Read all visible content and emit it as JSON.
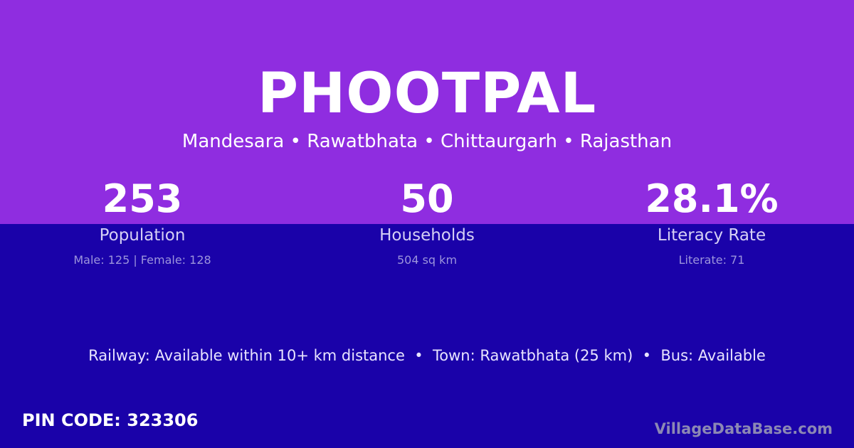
{
  "title": "PHOOTPAL",
  "location": "Mandesara • Rawatbhata • Chittaurgarh • Rajasthan",
  "stats": [
    {
      "value": "253",
      "label": "Population",
      "detail": "Male: 125 | Female: 128"
    },
    {
      "value": "50",
      "label": "Households",
      "detail": "504 sq km"
    },
    {
      "value": "28.1%",
      "label": "Literacy Rate",
      "detail": "Literate: 71"
    }
  ],
  "info": "Railway: Available within 10+ km distance  •  Town: Rawatbhata (25 km)  •  Bus: Available",
  "pin": "PIN CODE: 323306",
  "brand": "VillageDataBase.com",
  "colors": {
    "top": "#8f2de0",
    "bottom": "#1a02a9"
  }
}
